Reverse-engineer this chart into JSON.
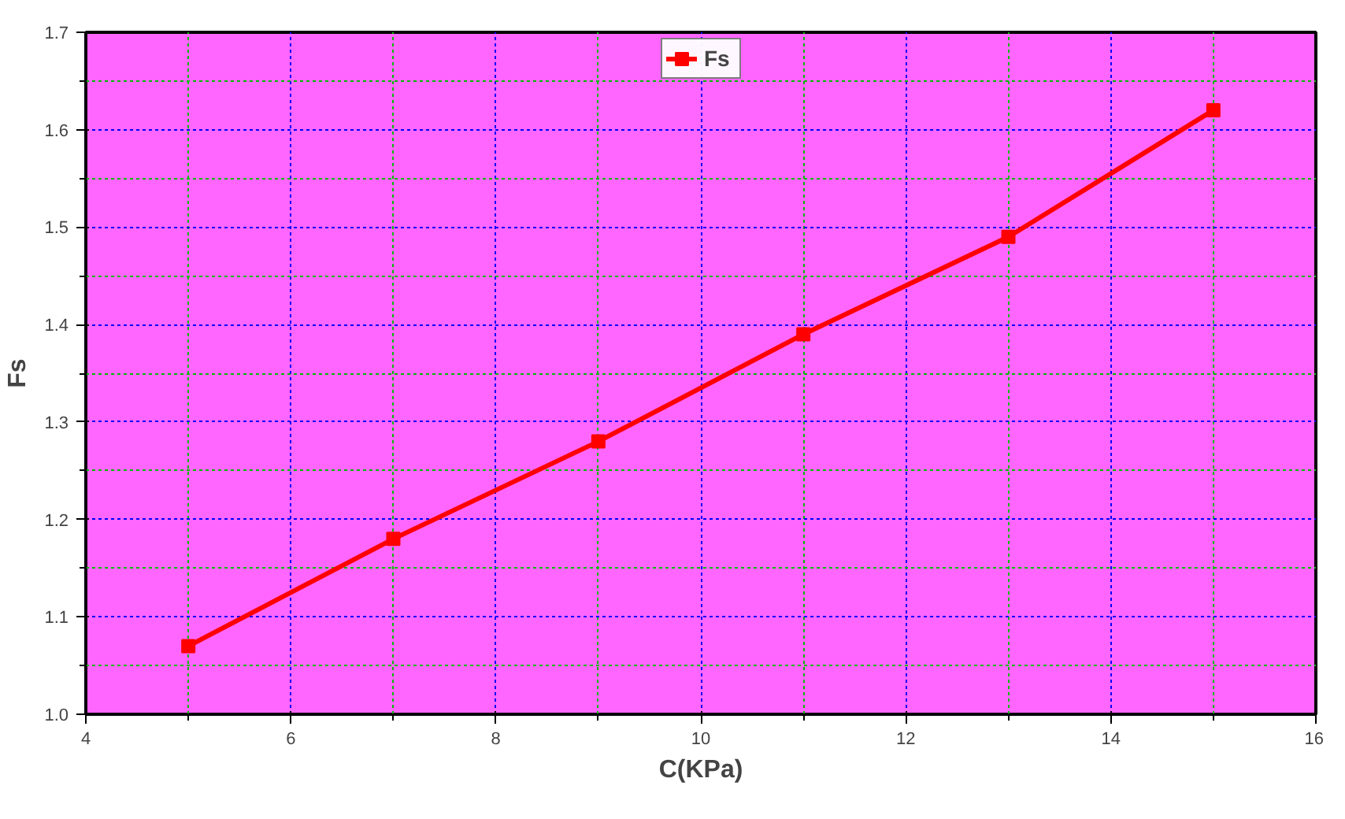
{
  "chart_data": {
    "type": "line",
    "xlabel": "C(KPa)",
    "ylabel": "Fs",
    "x": [
      5,
      7,
      9,
      11,
      13,
      15
    ],
    "series": [
      {
        "name": "Fs",
        "color": "#ff0000",
        "values": [
          1.07,
          1.18,
          1.28,
          1.39,
          1.49,
          1.62
        ]
      }
    ],
    "xlim": [
      4,
      16
    ],
    "ylim": [
      1.0,
      1.7
    ],
    "xticks": [
      4,
      {
        "value": 5,
        "label": null
      },
      6,
      {
        "value": 7,
        "label": null
      },
      8,
      {
        "value": 9,
        "label": null
      },
      10,
      {
        "value": 11,
        "label": null
      },
      12,
      {
        "value": 13,
        "label": null
      },
      14,
      {
        "value": 15,
        "label": null
      },
      16
    ],
    "yticks": [
      {
        "value": 1.0,
        "label": "1.0"
      },
      {
        "value": 1.05,
        "label": null
      },
      {
        "value": 1.1,
        "label": "1.1"
      },
      {
        "value": 1.15,
        "label": null
      },
      {
        "value": 1.2,
        "label": "1.2"
      },
      {
        "value": 1.25,
        "label": null
      },
      {
        "value": 1.3,
        "label": "1.3"
      },
      {
        "value": 1.35,
        "label": null
      },
      {
        "value": 1.4,
        "label": "1.4"
      },
      {
        "value": 1.45,
        "label": null
      },
      {
        "value": 1.5,
        "label": "1.5"
      },
      {
        "value": 1.55,
        "label": null
      },
      {
        "value": 1.6,
        "label": "1.6"
      },
      {
        "value": 1.65,
        "label": null
      },
      {
        "value": 1.7,
        "label": "1.7"
      }
    ],
    "grid": true,
    "legend": "top",
    "marker": "square",
    "line_style": "solid"
  }
}
